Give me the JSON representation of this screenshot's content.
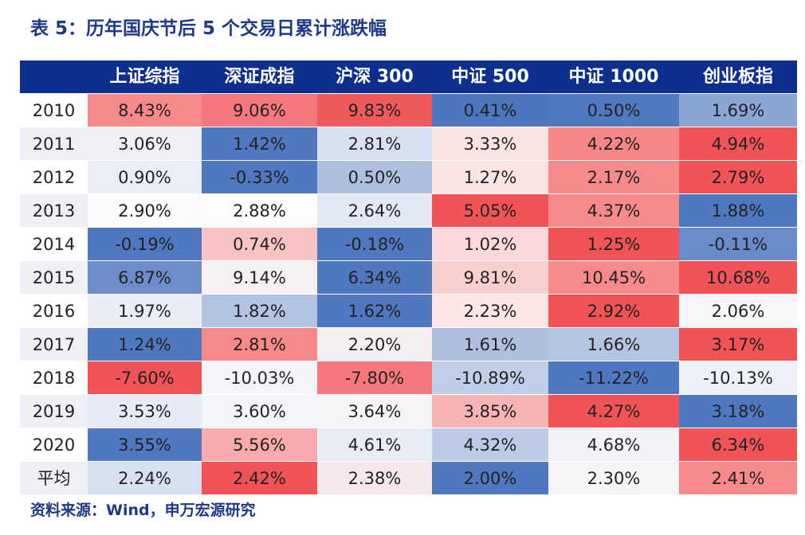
{
  "header": {
    "title": "表 5：历年国庆节后 5 个交易日累计涨跌幅"
  },
  "table": {
    "columns": [
      "上证综指",
      "深证成指",
      "沪深 300",
      "中证 500",
      "中证 1000",
      "创业板指"
    ],
    "rows": [
      [
        "2010",
        "8.43%",
        "9.06%",
        "9.83%",
        "0.41%",
        "0.50%",
        "1.69%"
      ],
      [
        "2011",
        "3.06%",
        "1.42%",
        "2.81%",
        "3.33%",
        "4.22%",
        "4.94%"
      ],
      [
        "2012",
        "0.90%",
        "-0.33%",
        "0.50%",
        "1.27%",
        "2.17%",
        "2.79%"
      ],
      [
        "2013",
        "2.90%",
        "2.88%",
        "2.64%",
        "5.05%",
        "4.37%",
        "1.88%"
      ],
      [
        "2014",
        "-0.19%",
        "0.74%",
        "-0.18%",
        "1.02%",
        "1.25%",
        "-0.11%"
      ],
      [
        "2015",
        "6.87%",
        "9.14%",
        "6.34%",
        "9.81%",
        "10.45%",
        "10.68%"
      ],
      [
        "2016",
        "1.97%",
        "1.82%",
        "1.62%",
        "2.23%",
        "2.92%",
        "2.06%"
      ],
      [
        "2017",
        "1.24%",
        "2.81%",
        "2.20%",
        "1.61%",
        "1.66%",
        "3.17%"
      ],
      [
        "2018",
        "-7.60%",
        "-10.03%",
        "-7.80%",
        "-10.89%",
        "-11.22%",
        "-10.13%"
      ],
      [
        "2019",
        "3.53%",
        "3.60%",
        "3.64%",
        "3.85%",
        "4.27%",
        "3.18%"
      ],
      [
        "2020",
        "3.55%",
        "5.56%",
        "4.61%",
        "4.32%",
        "4.68%",
        "6.34%"
      ],
      [
        "平均",
        "2.24%",
        "2.42%",
        "2.38%",
        "2.00%",
        "2.30%",
        "2.41%"
      ]
    ],
    "cell_colors": [
      [
        "#f7898b",
        "#f5797c",
        "#f05a5c",
        "#4e76be",
        "#5079c0",
        "#8ba6d5"
      ],
      [
        "#eef0f6",
        "#4f78c0",
        "#d6e0f0",
        "#fbe3e3",
        "#f68688",
        "#f05457"
      ],
      [
        "#eaeef6",
        "#4f78c0",
        "#aebfe0",
        "#fbe4e4",
        "#f6898b",
        "#f05457"
      ],
      [
        "#fbfbfd",
        "#fdfdfd",
        "#e4eaf4",
        "#f05457",
        "#f58a8c",
        "#4f78c0"
      ],
      [
        "#4f78c0",
        "#f9c3c4",
        "#4f78c0",
        "#fbd9da",
        "#f05457",
        "#6a8bc9"
      ],
      [
        "#6c8dca",
        "#f7f0f2",
        "#4f78c0",
        "#f9cfd0",
        "#f6898b",
        "#f05457"
      ],
      [
        "#e9edf5",
        "#b3c4e2",
        "#4f78c0",
        "#fde6e6",
        "#f05457",
        "#f8f6f8"
      ],
      [
        "#4f78c0",
        "#f7898b",
        "#f6eff2",
        "#aebfe0",
        "#b4c5e2",
        "#f05457"
      ],
      [
        "#f05457",
        "#f4f5f9",
        "#f5797c",
        "#c0cfe8",
        "#4f78c0",
        "#eef1f7"
      ],
      [
        "#e6ebf5",
        "#f3f4f9",
        "#f5f5f8",
        "#f8b3b4",
        "#f05457",
        "#4f78c0"
      ],
      [
        "#4f78c0",
        "#f8aaac",
        "#e8edf5",
        "#bccbe6",
        "#f4f2f6",
        "#f05457"
      ],
      [
        "#d6e0f0",
        "#f05457",
        "#f5e8ec",
        "#4f78c0",
        "#f6f4f7",
        "#f68a8c"
      ]
    ]
  },
  "footer": {
    "source": "资料来源：Wind，申万宏源研究"
  }
}
